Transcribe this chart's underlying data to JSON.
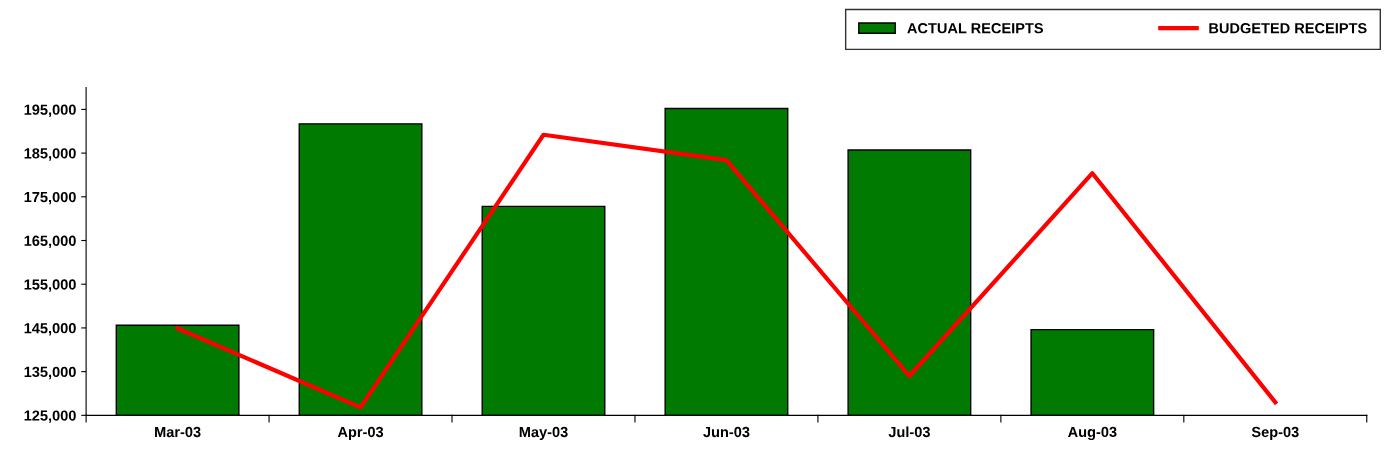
{
  "chart_data": {
    "type": "bar",
    "categories": [
      "Mar-03",
      "Apr-03",
      "May-03",
      "Jun-03",
      "Jul-03",
      "Aug-03",
      "Sep-03"
    ],
    "series": [
      {
        "name": "ACTUAL RECEIPTS",
        "color": "#007a00",
        "values": [
          145600,
          191700,
          172800,
          195200,
          185700,
          144600,
          null
        ]
      },
      {
        "name": "BUDGETED RECEIPTS",
        "type": "line",
        "color": "#ff0000",
        "values": [
          144900,
          126800,
          189200,
          183400,
          134000,
          180400,
          128000
        ]
      }
    ],
    "ylim": [
      125000,
      200000
    ],
    "yticks": [
      {
        "value": 125000,
        "label": "125,000"
      },
      {
        "value": 135000,
        "label": "135,000"
      },
      {
        "value": 145000,
        "label": "145,000"
      },
      {
        "value": 155000,
        "label": "155,000"
      },
      {
        "value": 165000,
        "label": "165,000"
      },
      {
        "value": 175000,
        "label": "175,000"
      },
      {
        "value": 185000,
        "label": "185,000"
      },
      {
        "value": 195000,
        "label": "195,000"
      }
    ],
    "grid": false,
    "legend": "top right",
    "marker": "none",
    "line_style": "solid"
  }
}
